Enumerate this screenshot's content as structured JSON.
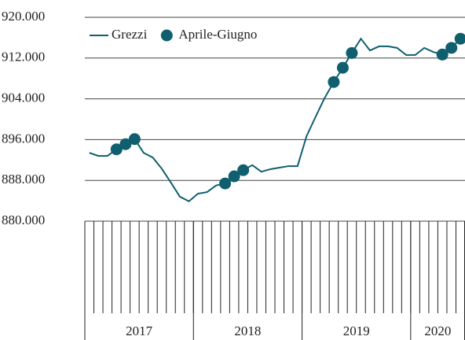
{
  "chart_data": {
    "type": "line",
    "categories": [
      null,
      null,
      null,
      null,
      null,
      null,
      null,
      null,
      null,
      null,
      null,
      null,
      null,
      null,
      null,
      null,
      null,
      null,
      null,
      null,
      null,
      null,
      null,
      null,
      null,
      null,
      null,
      null,
      null,
      null,
      null,
      null,
      null,
      null,
      null,
      null,
      null,
      null,
      null,
      null,
      null,
      null
    ],
    "category_groups": [
      {
        "label": "2017",
        "size": 12
      },
      {
        "label": "2018",
        "size": 12
      },
      {
        "label": "2019",
        "size": 12
      },
      {
        "label": "2020",
        "size": 6
      }
    ],
    "series": [
      {
        "name": "Grezzi",
        "color": "#0f5f6e",
        "style": "line",
        "values": [
          893400,
          892800,
          892800,
          894100,
          895100,
          896100,
          893400,
          892500,
          890300,
          887600,
          884800,
          883900,
          885400,
          885700,
          887000,
          887400,
          888800,
          890000,
          891000,
          889700,
          890200,
          890500,
          890800,
          890800,
          896700,
          900500,
          904200,
          907300,
          910100,
          913000,
          915800,
          913500,
          914300,
          914300,
          914000,
          912600,
          912600,
          914000,
          913200,
          912700,
          914000,
          915800
        ]
      },
      {
        "name": "Aprile-Giugno",
        "color": "#0f5f6e",
        "style": "marker",
        "values": [
          null,
          null,
          null,
          894100,
          895100,
          896100,
          null,
          null,
          null,
          null,
          null,
          null,
          null,
          null,
          null,
          887400,
          888800,
          890000,
          null,
          null,
          null,
          null,
          null,
          null,
          null,
          null,
          null,
          907300,
          910100,
          913000,
          null,
          null,
          null,
          null,
          null,
          null,
          null,
          null,
          null,
          912700,
          914000,
          915800
        ]
      }
    ],
    "ylim": [
      880000,
      920000
    ],
    "yticks": [
      {
        "value": 880000,
        "label": "880.000"
      },
      {
        "value": 888000,
        "label": "888.000"
      },
      {
        "value": 896000,
        "label": "896.000"
      },
      {
        "value": 904000,
        "label": "904.000"
      },
      {
        "value": 912000,
        "label": "912.000"
      },
      {
        "value": 920000,
        "label": "920.000"
      }
    ],
    "grid": true,
    "legend": "top-left"
  }
}
